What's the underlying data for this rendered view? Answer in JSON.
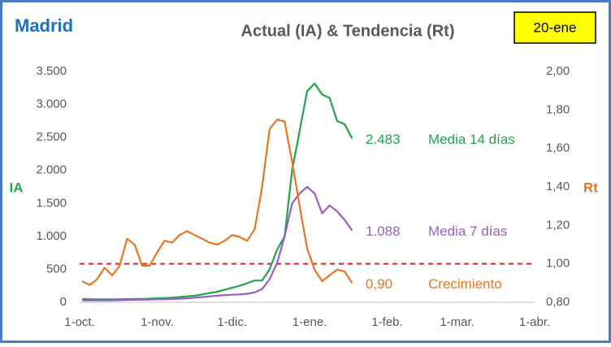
{
  "chart_data": {
    "type": "line",
    "region": "Madrid",
    "title": "Actual (IA) & Tendencia (Rt)",
    "date_badge": "20-ene",
    "ylabel": "IA",
    "y2label": "Rt",
    "x": [
      1,
      4,
      7,
      10,
      13,
      16,
      19,
      22,
      25,
      28,
      31,
      34,
      37,
      40,
      43,
      46,
      49,
      52,
      55,
      58,
      61,
      64,
      67,
      70,
      73,
      76,
      79,
      82,
      85,
      88,
      91,
      94,
      97,
      100,
      103,
      106,
      109
    ],
    "xlim": [
      0,
      182
    ],
    "xticks": [
      {
        "value": 0,
        "label": "1-oct."
      },
      {
        "value": 31,
        "label": "1-nov."
      },
      {
        "value": 61,
        "label": "1-dic."
      },
      {
        "value": 92,
        "label": "1-ene."
      },
      {
        "value": 123,
        "label": "1-feb."
      },
      {
        "value": 151,
        "label": "1-mar."
      },
      {
        "value": 182,
        "label": "1-abr."
      }
    ],
    "ylim": [
      0,
      3500
    ],
    "yticks": [
      0,
      500,
      {
        "value": 1000,
        "label": "1.000"
      },
      {
        "value": 1500,
        "label": "1.500"
      },
      {
        "value": 2000,
        "label": "2.000"
      },
      {
        "value": 2500,
        "label": "2.500"
      },
      {
        "value": 3000,
        "label": "3.000"
      },
      {
        "value": 3500,
        "label": "3.500"
      }
    ],
    "y2lim": [
      0.8,
      2.0
    ],
    "y2ticks": [
      {
        "value": 0.8,
        "label": "0,80"
      },
      {
        "value": 1.0,
        "label": "1,00"
      },
      {
        "value": 1.2,
        "label": "1,20"
      },
      {
        "value": 1.4,
        "label": "1,40"
      },
      {
        "value": 1.6,
        "label": "1,60"
      },
      {
        "value": 1.8,
        "label": "1,80"
      },
      {
        "value": 2.0,
        "label": "2,00"
      }
    ],
    "reference_line": {
      "value": 1.0,
      "axis": "y2",
      "color": "#e02020"
    },
    "series": [
      {
        "name": "Media 14 días",
        "color": "#1fa64a",
        "axis": "y",
        "values": [
          50,
          48,
          45,
          45,
          45,
          47,
          48,
          50,
          52,
          55,
          60,
          65,
          70,
          80,
          90,
          100,
          120,
          140,
          160,
          190,
          220,
          250,
          290,
          330,
          330,
          500,
          800,
          1000,
          2000,
          2600,
          3200,
          3320,
          3150,
          3100,
          2750,
          2700,
          2483
        ],
        "value_labels": [
          null,
          null,
          null,
          null,
          null,
          null,
          null,
          null,
          null,
          null,
          null,
          null,
          null,
          null,
          null,
          null,
          null,
          null,
          null,
          null,
          null,
          null,
          null,
          null,
          null,
          null,
          null,
          null,
          null,
          null,
          null,
          null,
          null,
          null,
          null,
          null,
          "2.483"
        ]
      },
      {
        "name": "Media 7 días",
        "color": "#9a5cc8",
        "axis": "y",
        "values": [
          30,
          30,
          28,
          28,
          30,
          32,
          35,
          38,
          40,
          42,
          45,
          48,
          50,
          55,
          60,
          70,
          80,
          90,
          100,
          110,
          115,
          120,
          130,
          150,
          200,
          350,
          600,
          1000,
          1500,
          1650,
          1750,
          1650,
          1350,
          1470,
          1380,
          1250,
          1088
        ],
        "value_labels": [
          null,
          null,
          null,
          null,
          null,
          null,
          null,
          null,
          null,
          null,
          null,
          null,
          null,
          null,
          null,
          null,
          null,
          null,
          null,
          null,
          null,
          null,
          null,
          null,
          null,
          null,
          null,
          null,
          null,
          null,
          null,
          null,
          null,
          null,
          null,
          null,
          "1.088"
        ]
      },
      {
        "name": "Crecimiento",
        "color": "#e8761f",
        "axis": "y2",
        "values": [
          0.91,
          0.89,
          0.92,
          0.98,
          0.94,
          0.99,
          1.13,
          1.1,
          0.99,
          0.99,
          1.06,
          1.12,
          1.11,
          1.15,
          1.17,
          1.15,
          1.13,
          1.11,
          1.1,
          1.12,
          1.15,
          1.14,
          1.12,
          1.18,
          1.4,
          1.7,
          1.75,
          1.74,
          1.53,
          1.3,
          1.08,
          0.97,
          0.91,
          0.94,
          0.97,
          0.96,
          0.9
        ],
        "value_labels": [
          null,
          null,
          null,
          null,
          null,
          null,
          null,
          null,
          null,
          null,
          null,
          null,
          null,
          null,
          null,
          null,
          null,
          null,
          null,
          null,
          null,
          null,
          null,
          null,
          null,
          null,
          null,
          null,
          null,
          null,
          null,
          null,
          null,
          null,
          null,
          null,
          "0,90"
        ]
      }
    ]
  }
}
